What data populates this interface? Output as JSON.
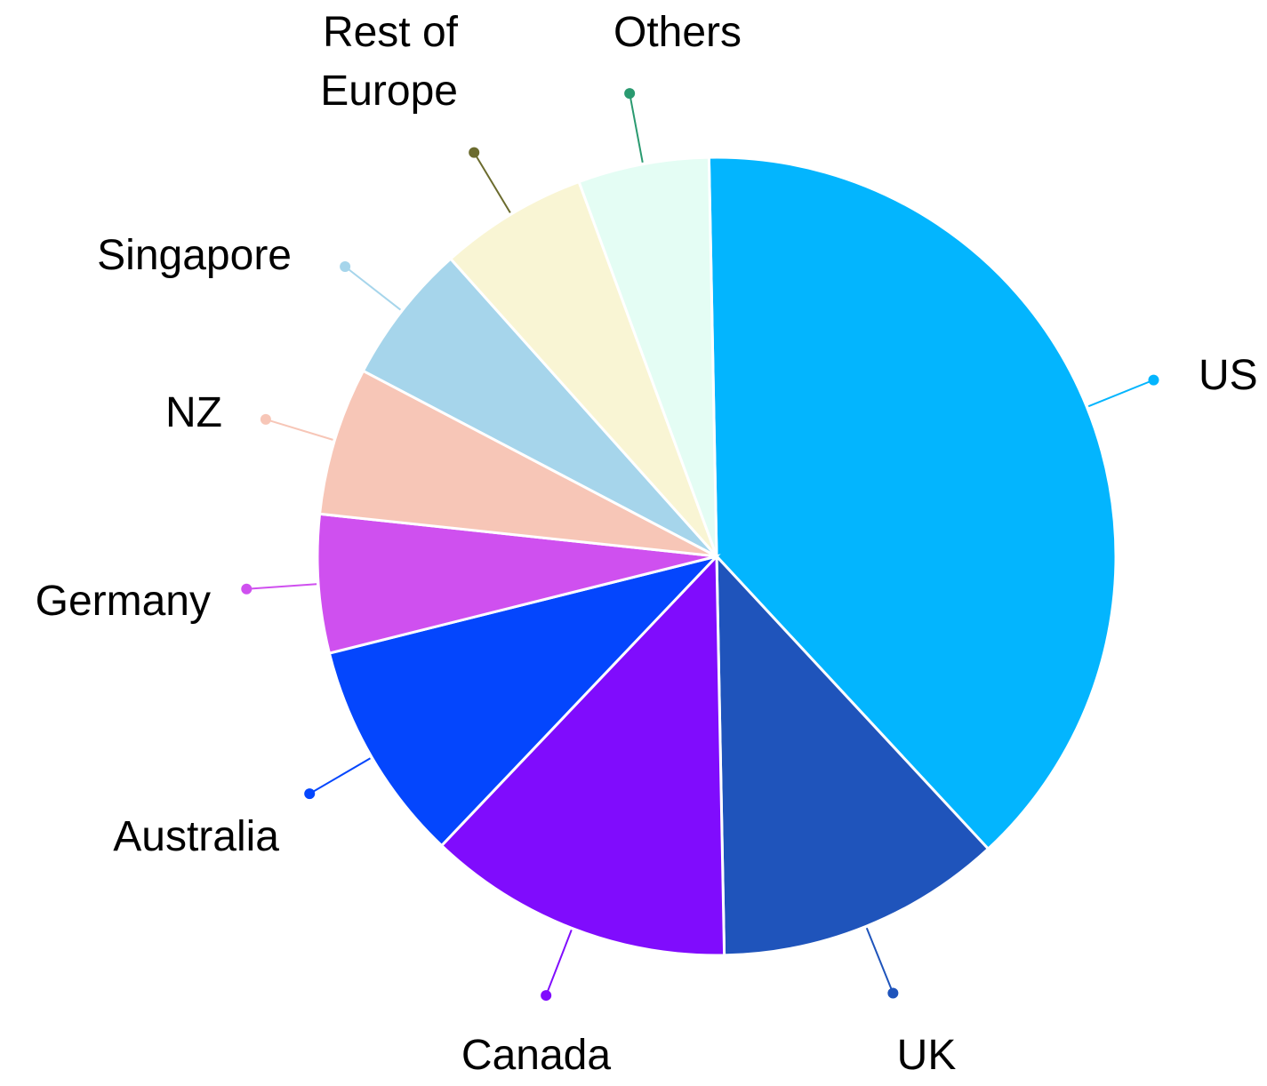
{
  "chart_data": {
    "type": "pie",
    "categories": [
      "US",
      "UK",
      "Canada",
      "Australia",
      "Germany",
      "NZ",
      "Singapore",
      "Rest of Europe",
      "Others"
    ],
    "values": [
      38.4,
      11.6,
      12.4,
      9.0,
      5.6,
      6.0,
      5.7,
      6.0,
      5.3
    ],
    "colors": [
      "#03b5fe",
      "#1f54bb",
      "#800cfd",
      "#0446fd",
      "#cf50ef",
      "#f7c6b7",
      "#a6d5eb",
      "#f9f5d4",
      "#e4fdf4"
    ],
    "label_line_colors": [
      "#03b5fe",
      "#1f54bb",
      "#800cfd",
      "#0446fd",
      "#cf50ef",
      "#f7c6b7",
      "#a6d5eb",
      "#6b6b2e",
      "#2a9a70"
    ]
  }
}
